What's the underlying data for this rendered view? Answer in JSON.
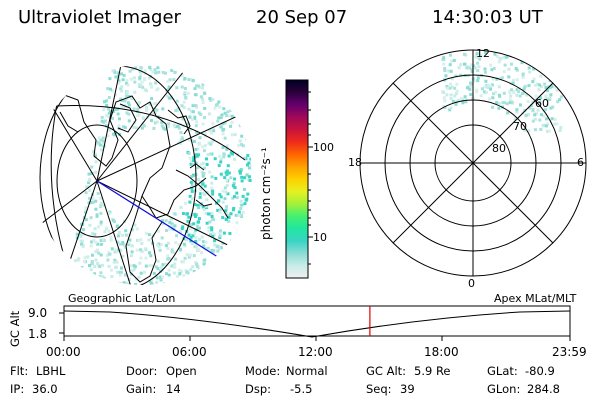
{
  "header": {
    "title": "Ultraviolet Imager",
    "date": "20 Sep 07",
    "time": "14:30:03 UT"
  },
  "geo_panel": {
    "label": "Geographic Lat/Lon"
  },
  "polar_panel": {
    "label": "Apex MLat/MLT",
    "mlt_labels": {
      "top": "12",
      "left": "18",
      "right": "6",
      "bottom": "0"
    },
    "lat_labels": [
      "60",
      "70",
      "80"
    ]
  },
  "colorbar": {
    "unit_label": "photon cm⁻²s⁻¹",
    "ticks": [
      "100",
      "10"
    ],
    "scale": "log",
    "colors": [
      "#f0f0f0",
      "#c8ece8",
      "#8adcd4",
      "#39d4c4",
      "#22e6a0",
      "#44f070",
      "#a6f03a",
      "#e6f020",
      "#ffd000",
      "#ffa000",
      "#ff6400",
      "#ee2a1c",
      "#c8143c",
      "#a0085a",
      "#64006c",
      "#2a003c",
      "#000022"
    ]
  },
  "timeline": {
    "y_axis_label": "GC Alt",
    "y_ticks": [
      "9.0",
      "1.8"
    ],
    "x_ticks": [
      "00:00",
      "06:00",
      "12:00",
      "18:00",
      "23:59"
    ],
    "current_time_marker": "14:30",
    "marker_color": "#e00000"
  },
  "info_rows": [
    [
      {
        "label": "Flt:",
        "value": "LBHL"
      },
      {
        "label": "Door:",
        "value": "Open"
      },
      {
        "label": "Mode:",
        "value": "Normal"
      },
      {
        "label": "GC Alt:",
        "value": "5.9 Re"
      },
      {
        "label": "GLat:",
        "value": "-80.9"
      }
    ],
    [
      {
        "label": "IP:",
        "value": "36.0"
      },
      {
        "label": "Gain:",
        "value": "14"
      },
      {
        "label": "Dsp:",
        "value": "-5.5"
      },
      {
        "label": "Seq:",
        "value": "39"
      },
      {
        "label": "GLon:",
        "value": "284.8"
      }
    ]
  ]
}
